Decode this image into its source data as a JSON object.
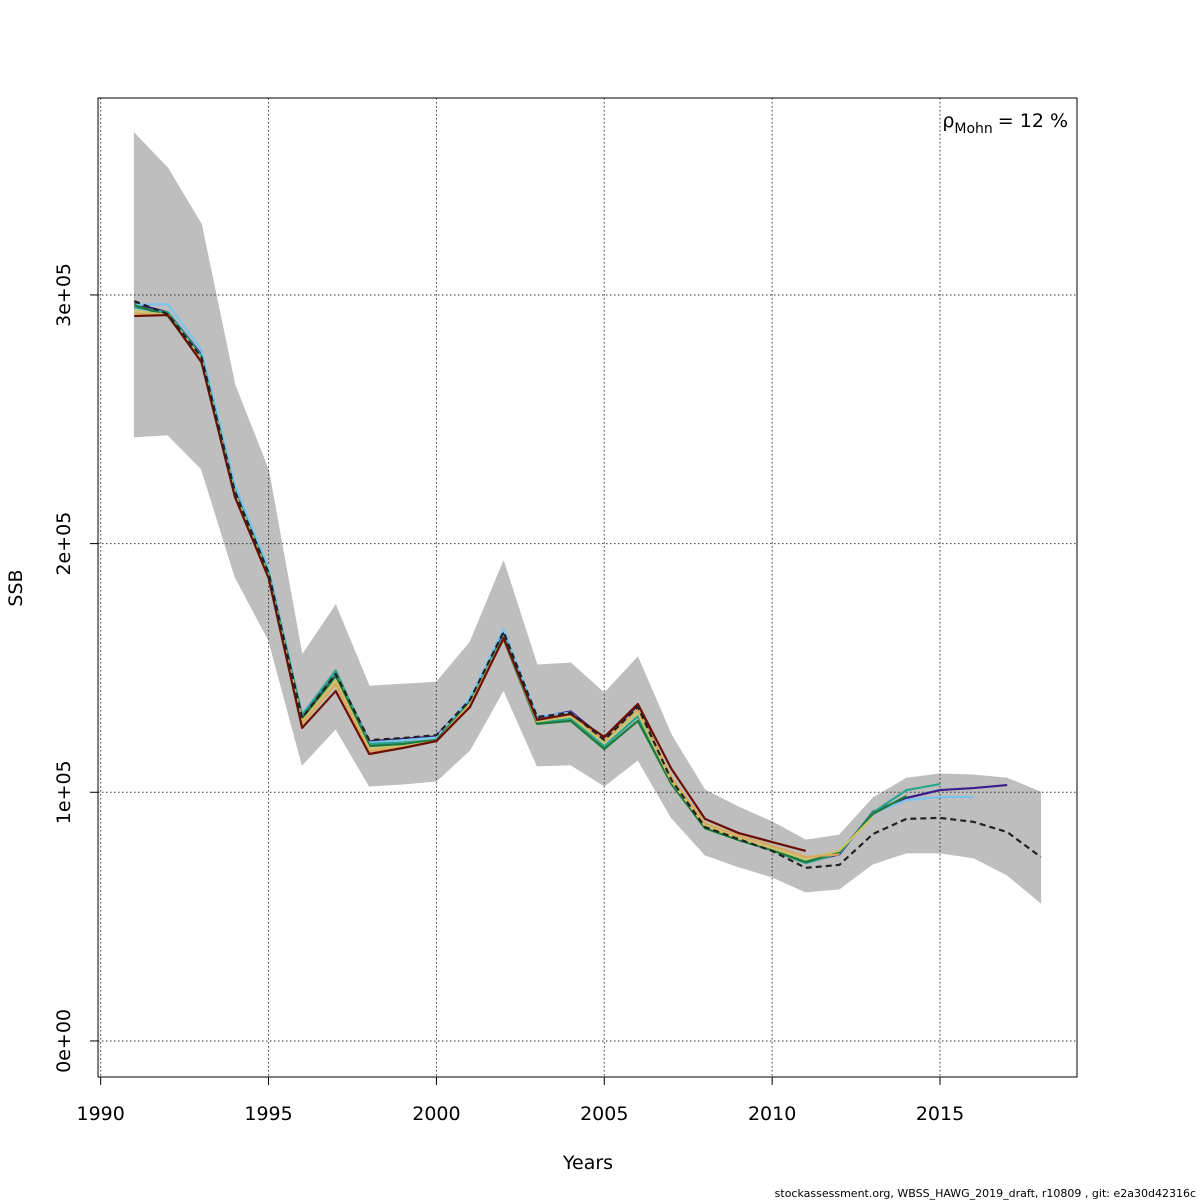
{
  "chart_data": {
    "type": "line",
    "xlabel": "Years",
    "ylabel": "SSB",
    "annotation": {
      "symbol": "ρ",
      "subscript": "Mohn",
      "text": "= 12 %"
    },
    "footer": "stockassessment.org, WBSS_HAWG_2019_draft, r10809 , git: e2a30d42316c",
    "x": [
      1991,
      1992,
      1993,
      1994,
      1995,
      1996,
      1997,
      1998,
      1999,
      2000,
      2001,
      2002,
      2003,
      2004,
      2005,
      2006,
      2007,
      2008,
      2009,
      2010,
      2011,
      2012,
      2013,
      2014,
      2015,
      2016,
      2017,
      2018
    ],
    "xlim": [
      1989.92,
      2019.08
    ],
    "xticks": [
      1990,
      1995,
      2000,
      2005,
      2010,
      2015
    ],
    "ylim": [
      -14500,
      379200
    ],
    "yticks": [
      {
        "value": 0,
        "label": "0e+00"
      },
      {
        "value": 100000,
        "label": "1e+05"
      },
      {
        "value": 200000,
        "label": "2e+05"
      },
      {
        "value": 300000,
        "label": "3e+05"
      }
    ],
    "grid": true,
    "band": {
      "color": "#bebebe",
      "upper": [
        365100,
        351000,
        328500,
        263800,
        229600,
        155200,
        175300,
        142700,
        143500,
        144300,
        160400,
        193000,
        151200,
        152000,
        139900,
        154400,
        123000,
        100900,
        94100,
        88100,
        80800,
        82800,
        97700,
        105700,
        107400,
        107000,
        105700,
        100100
      ],
      "lower": [
        242900,
        243700,
        230000,
        186600,
        161200,
        111000,
        125500,
        102500,
        103300,
        104500,
        117000,
        141100,
        110600,
        111000,
        102500,
        113000,
        89700,
        74800,
        70000,
        65900,
        59900,
        61100,
        71200,
        75600,
        75600,
        73600,
        66700,
        55500
      ]
    },
    "series": [
      {
        "color": "#3b1e8c",
        "values": [
          296500,
          293000,
          276000,
          222000,
          189000,
          130500,
          148000,
          120500,
          121500,
          122500,
          137500,
          164800,
          130000,
          132500,
          121500,
          135000,
          104500,
          86000,
          81000,
          77000,
          72000,
          75000,
          92100,
          97700,
          100900,
          101700,
          102900,
          null
        ]
      },
      {
        "color": "#7cc3ee",
        "values": [
          296000,
          296300,
          277800,
          223600,
          190200,
          131500,
          148500,
          120000,
          121000,
          122000,
          138000,
          165700,
          130500,
          132000,
          120500,
          133500,
          104000,
          85800,
          80800,
          76800,
          72500,
          75500,
          91500,
          96900,
          98100,
          98100,
          null,
          null
        ]
      },
      {
        "color": "#2aa58a",
        "values": [
          295000,
          293000,
          275500,
          221000,
          188500,
          131000,
          149000,
          119500,
          120000,
          121000,
          136500,
          163000,
          128000,
          129500,
          118500,
          130500,
          103500,
          85500,
          80800,
          76600,
          71500,
          75500,
          91800,
          100900,
          103300,
          null,
          null,
          null
        ]
      },
      {
        "color": "#1d7a3c",
        "values": [
          295900,
          291500,
          273800,
          219500,
          187400,
          129100,
          146800,
          118600,
          119400,
          121000,
          135900,
          161600,
          127500,
          128700,
          117400,
          128700,
          103300,
          85600,
          80800,
          76800,
          72000,
          76000,
          91300,
          98500,
          null,
          null,
          null,
          null
        ]
      },
      {
        "color": "#c9c46a",
        "values": [
          293500,
          292000,
          274000,
          220000,
          187000,
          128500,
          145000,
          117500,
          118500,
          120500,
          135500,
          162000,
          128500,
          130500,
          120000,
          132000,
          104500,
          86500,
          81500,
          77500,
          73000,
          76500,
          90000,
          null,
          null,
          null,
          null,
          null
        ]
      },
      {
        "color": "#d9a85c",
        "values": [
          292500,
          291800,
          273500,
          219000,
          186500,
          127500,
          143500,
          116500,
          118000,
          120500,
          135000,
          162000,
          129000,
          131000,
          121000,
          133500,
          106000,
          87500,
          82500,
          78500,
          74000,
          75000,
          null,
          null,
          null,
          null,
          null,
          null
        ]
      },
      {
        "color": "#6b0f05",
        "values": [
          291500,
          291900,
          273000,
          218700,
          186200,
          125900,
          140700,
          115400,
          117800,
          120600,
          134300,
          162000,
          129100,
          131500,
          122200,
          135500,
          109400,
          89300,
          83600,
          80000,
          76400,
          null,
          null,
          null,
          null,
          null,
          null,
          null
        ]
      },
      {
        "color": "#222222",
        "dashed": true,
        "values": [
          297500,
          292300,
          275000,
          220700,
          188200,
          129900,
          147600,
          121000,
          121800,
          123000,
          137100,
          164500,
          130300,
          131900,
          121000,
          134300,
          104900,
          86000,
          81200,
          76400,
          69600,
          70800,
          83200,
          89300,
          89700,
          88100,
          84000,
          74000
        ]
      }
    ]
  }
}
